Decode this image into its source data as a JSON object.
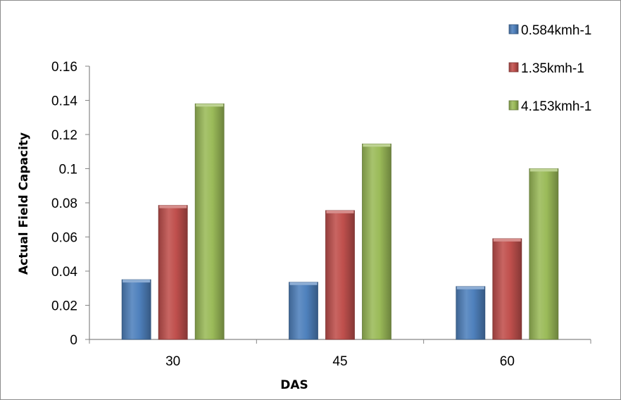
{
  "chart_data": {
    "type": "bar",
    "title": "",
    "xlabel": "DAS",
    "ylabel": "Actual Field Capacity",
    "categories": [
      "30",
      "45",
      "60"
    ],
    "series": [
      {
        "name": "0.584kmh-1",
        "values": [
          0.035,
          0.0335,
          0.031
        ],
        "color": "#4f81bd"
      },
      {
        "name": "1.35kmh-1",
        "values": [
          0.0785,
          0.0755,
          0.059
        ],
        "color": "#c0504d"
      },
      {
        "name": "4.153kmh-1",
        "values": [
          0.138,
          0.1145,
          0.1
        ],
        "color": "#9bbb59"
      }
    ],
    "ylim": [
      0,
      0.16
    ],
    "yticks": [
      "0",
      "0.02",
      "0.04",
      "0.06",
      "0.08",
      "0.1",
      "0.12",
      "0.14",
      "0.16"
    ],
    "grid": false,
    "legend_position": "top-right"
  }
}
